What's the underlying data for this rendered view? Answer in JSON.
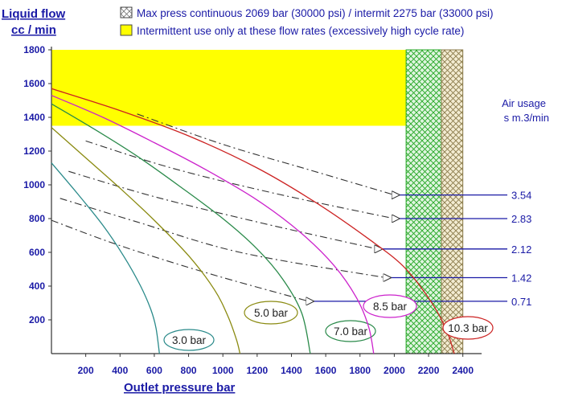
{
  "chart_data": {
    "type": "line",
    "ylabel_line1": "Liquid flow",
    "ylabel_line2": "cc / min",
    "xlabel": "Outlet pressure   bar",
    "xlim": [
      0,
      2500
    ],
    "ylim": [
      0,
      1800
    ],
    "x_ticks": [
      200,
      400,
      600,
      800,
      1000,
      1200,
      1400,
      1600,
      1800,
      2000,
      2200,
      2400
    ],
    "y_ticks": [
      200,
      400,
      600,
      800,
      1000,
      1200,
      1400,
      1600,
      1800
    ],
    "grid": false,
    "legend": [
      {
        "text": "Max press continuous 2069 bar (30000 psi) / intermit 2275 bar (33000 psi)",
        "swatch": "crosshatch"
      },
      {
        "text": "Intermittent use only at these flow rates (excessively high cycle rate)",
        "swatch": "yellow"
      }
    ],
    "regions": {
      "intermittent_flow_min": 1350,
      "green_hatch_x": [
        2069,
        2275
      ],
      "tan_hatch_x": [
        2275,
        2400
      ]
    },
    "series": [
      {
        "name": "3.0 bar",
        "color": "#2a8a8a",
        "points": [
          [
            0,
            1130
          ],
          [
            150,
            950
          ],
          [
            300,
            760
          ],
          [
            420,
            580
          ],
          [
            520,
            400
          ],
          [
            580,
            260
          ],
          [
            610,
            150
          ],
          [
            630,
            0
          ]
        ]
      },
      {
        "name": "5.0 bar",
        "color": "#8a8a10",
        "points": [
          [
            0,
            1340
          ],
          [
            200,
            1160
          ],
          [
            400,
            980
          ],
          [
            600,
            790
          ],
          [
            800,
            580
          ],
          [
            950,
            380
          ],
          [
            1030,
            220
          ],
          [
            1080,
            80
          ],
          [
            1100,
            0
          ]
        ]
      },
      {
        "name": "7.0 bar",
        "color": "#2a8a4a",
        "points": [
          [
            0,
            1480
          ],
          [
            250,
            1330
          ],
          [
            500,
            1170
          ],
          [
            750,
            990
          ],
          [
            1000,
            800
          ],
          [
            1200,
            620
          ],
          [
            1350,
            440
          ],
          [
            1460,
            240
          ],
          [
            1510,
            0
          ]
        ]
      },
      {
        "name": "8.5 bar",
        "color": "#cc22cc",
        "points": [
          [
            0,
            1530
          ],
          [
            300,
            1400
          ],
          [
            600,
            1250
          ],
          [
            900,
            1090
          ],
          [
            1200,
            910
          ],
          [
            1450,
            720
          ],
          [
            1650,
            520
          ],
          [
            1780,
            330
          ],
          [
            1850,
            160
          ],
          [
            1880,
            0
          ]
        ]
      },
      {
        "name": "10.3 bar",
        "color": "#cc2222",
        "points": [
          [
            0,
            1570
          ],
          [
            400,
            1440
          ],
          [
            800,
            1290
          ],
          [
            1200,
            1100
          ],
          [
            1550,
            890
          ],
          [
            1850,
            680
          ],
          [
            2050,
            520
          ],
          [
            2200,
            330
          ],
          [
            2300,
            150
          ],
          [
            2350,
            0
          ]
        ]
      }
    ],
    "air_usage": {
      "title_line1": "Air usage",
      "title_line2": "s m.3/min",
      "lines": [
        {
          "value": "3.54",
          "points": [
            [
              500,
              1420
            ],
            [
              1000,
              1240
            ],
            [
              1500,
              1090
            ],
            [
              2000,
              940
            ]
          ]
        },
        {
          "value": "2.83",
          "points": [
            [
              200,
              1260
            ],
            [
              700,
              1100
            ],
            [
              1300,
              950
            ],
            [
              2000,
              800
            ]
          ]
        },
        {
          "value": "2.12",
          "points": [
            [
              100,
              1080
            ],
            [
              600,
              930
            ],
            [
              1200,
              780
            ],
            [
              1900,
              620
            ]
          ]
        },
        {
          "value": "1.42",
          "points": [
            [
              50,
              920
            ],
            [
              500,
              780
            ],
            [
              1100,
              600
            ],
            [
              1950,
              450
            ]
          ]
        },
        {
          "value": "0.71",
          "points": [
            [
              0,
              790
            ],
            [
              400,
              640
            ],
            [
              900,
              480
            ],
            [
              1500,
              310
            ]
          ]
        }
      ]
    }
  }
}
